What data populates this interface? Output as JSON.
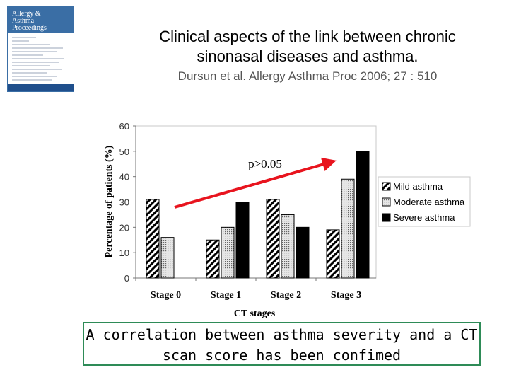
{
  "header": {
    "title_line1": "Clinical aspects of the link between chronic",
    "title_line2": "sinonasal diseases and asthma.",
    "citation": "Dursun et al. Allergy Asthma Proc 2006; 27 : 510"
  },
  "journal_cover": {
    "title_line1": "Allergy &",
    "title_line2": "Asthma",
    "title_line3": "Proceedings",
    "colors": {
      "header": "#3a6ea5",
      "footer": "#1f4f8c"
    }
  },
  "conclusion": {
    "line1": "A correlation between asthma severity and a CT",
    "line2": "scan score has been confimed"
  },
  "chart_data": {
    "type": "bar",
    "categories": [
      "Stage 0",
      "Stage 1",
      "Stage 2",
      "Stage 3"
    ],
    "series": [
      {
        "name": "Mild asthma",
        "values": [
          31,
          15,
          31,
          19
        ],
        "pattern": "diagonal-hatch"
      },
      {
        "name": "Moderate asthma",
        "values": [
          16,
          20,
          25,
          39
        ],
        "pattern": "dotted"
      },
      {
        "name": "Severe asthma",
        "values": [
          null,
          30,
          20,
          50
        ],
        "pattern": "solid-black"
      }
    ],
    "xlabel": "CT stages",
    "ylabel": "Percentage of patients (%)",
    "ylim": [
      0,
      60
    ],
    "yticks": [
      0,
      10,
      20,
      30,
      40,
      50,
      60
    ],
    "ytick_labels": [
      "0",
      "10",
      "20",
      "30",
      "40",
      "50",
      "60"
    ],
    "annotation": {
      "text": "p>0.05",
      "arrow_color": "#e8141e"
    },
    "legend_position": "right",
    "grid": false
  }
}
